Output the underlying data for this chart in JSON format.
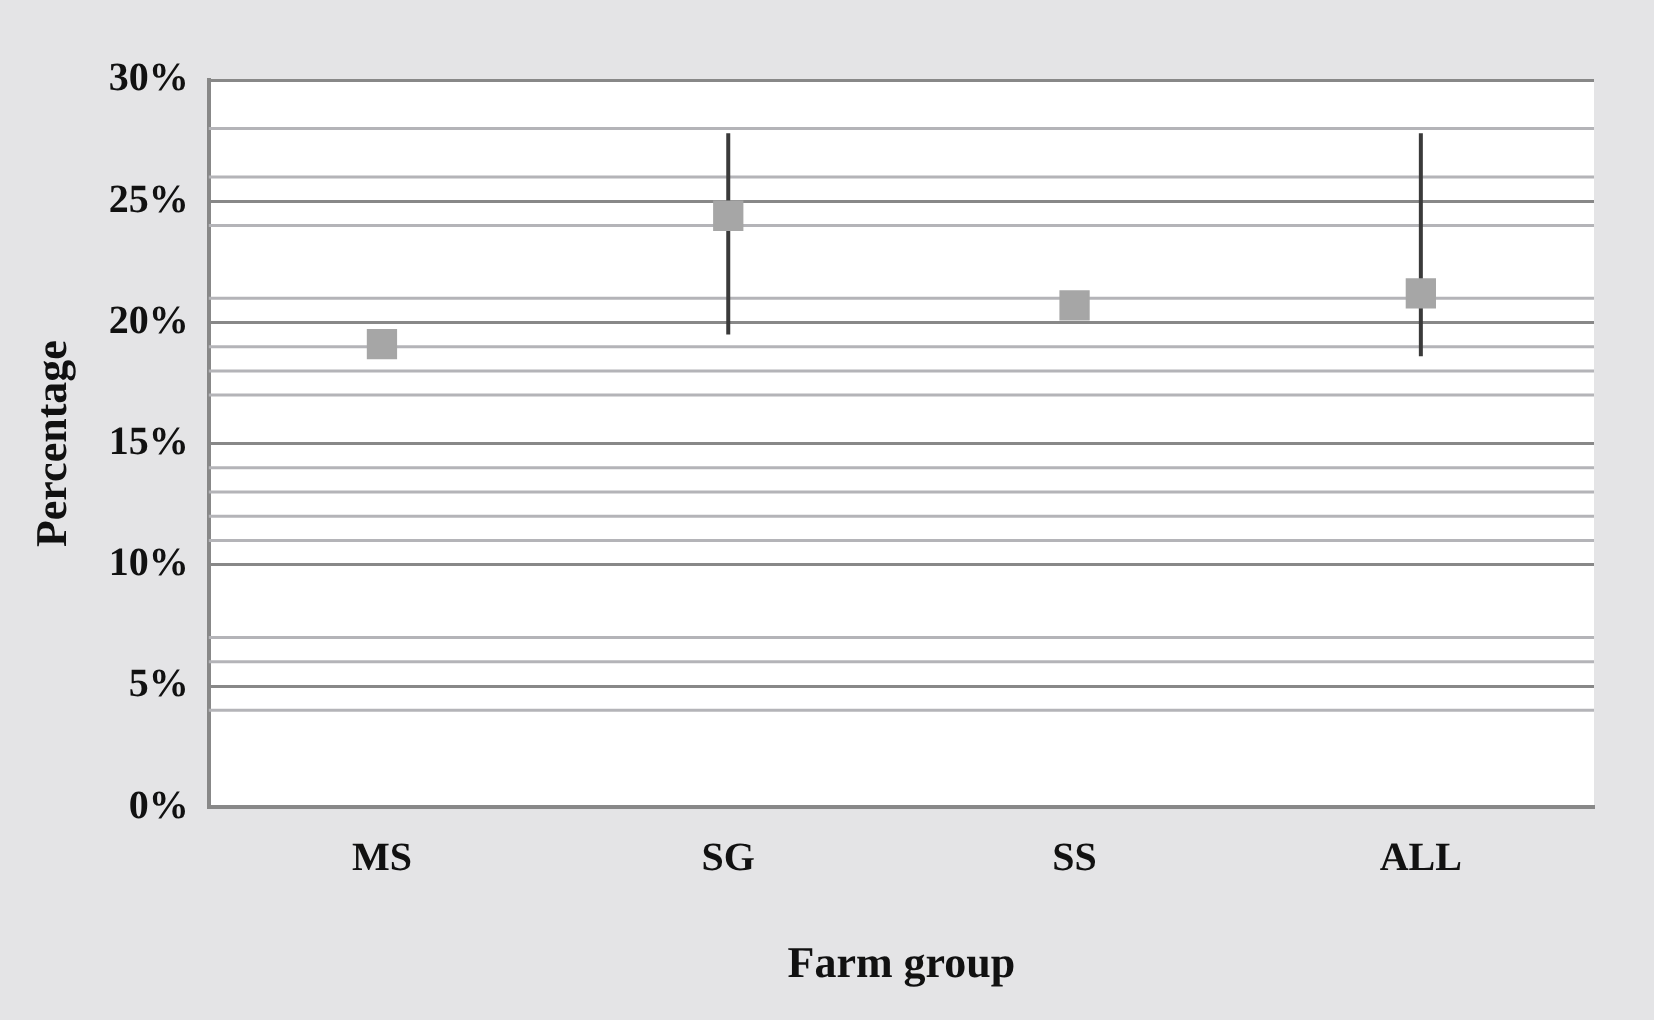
{
  "chart_data": {
    "type": "scatter",
    "xlabel": "Farm group",
    "ylabel": "Percentage",
    "categories": [
      "MS",
      "SG",
      "SS",
      "ALL"
    ],
    "values": [
      19.1,
      24.4,
      20.7,
      21.2
    ],
    "errors": [
      null,
      [
        19.5,
        27.8
      ],
      null,
      [
        18.6,
        27.8
      ]
    ],
    "color": "#a6a6a6",
    "marker": "square",
    "ylim": [
      0,
      30
    ],
    "yticks": [
      {
        "value": 0,
        "label": "0%"
      },
      {
        "value": 5,
        "label": "5%"
      },
      {
        "value": 10,
        "label": "10%"
      },
      {
        "value": 15,
        "label": "15%"
      },
      {
        "value": 20,
        "label": "20%"
      },
      {
        "value": 25,
        "label": "25%"
      },
      {
        "value": 30,
        "label": "30%"
      }
    ],
    "grid": "y",
    "ref_lines": [
      {
        "axis": "y",
        "value": 4,
        "color": "#b4b4b8"
      },
      {
        "axis": "y",
        "value": 6,
        "color": "#b4b4b8"
      },
      {
        "axis": "y",
        "value": 7,
        "color": "#b4b4b8"
      },
      {
        "axis": "y",
        "value": 11,
        "color": "#b4b4b8"
      },
      {
        "axis": "y",
        "value": 12,
        "color": "#b4b4b8"
      },
      {
        "axis": "y",
        "value": 13,
        "color": "#b4b4b8"
      },
      {
        "axis": "y",
        "value": 14,
        "color": "#b4b4b8"
      },
      {
        "axis": "y",
        "value": 17,
        "color": "#b4b4b8"
      },
      {
        "axis": "y",
        "value": 18,
        "color": "#b4b4b8"
      },
      {
        "axis": "y",
        "value": 19,
        "color": "#b4b4b8"
      },
      {
        "axis": "y",
        "value": 21,
        "color": "#b4b4b8"
      },
      {
        "axis": "y",
        "value": 24,
        "color": "#b4b4b8"
      },
      {
        "axis": "y",
        "value": 26,
        "color": "#b4b4b8"
      },
      {
        "axis": "y",
        "value": 28,
        "color": "#b4b4b8"
      }
    ]
  }
}
